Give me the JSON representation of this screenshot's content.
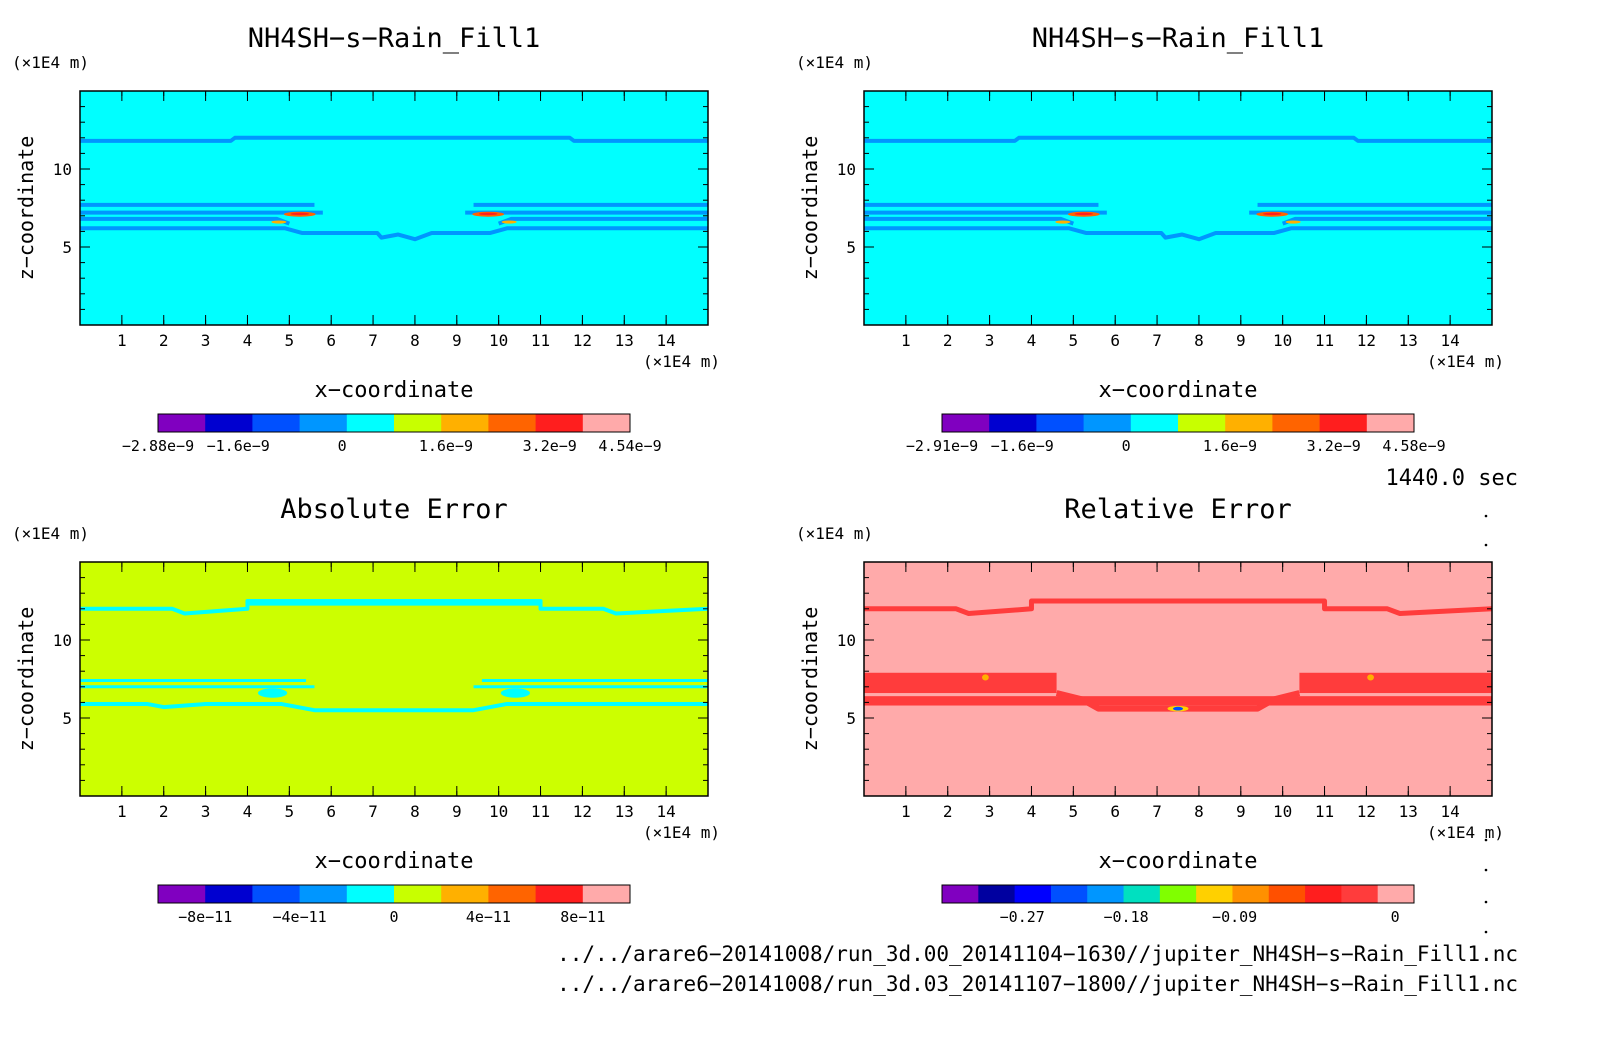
{
  "chart_data": [
    {
      "type": "heatmap",
      "title": "NH4SH−s−Rain_Fill1",
      "xlabel": "x−coordinate",
      "ylabel": "z−coordinate",
      "x_unit": "(×1E4 m)",
      "y_unit": "(×1E4 m)",
      "xlim": [
        0,
        15
      ],
      "ylim": [
        0,
        15
      ],
      "x_ticks": [
        1,
        2,
        3,
        4,
        5,
        6,
        7,
        8,
        9,
        10,
        11,
        12,
        13,
        14
      ],
      "y_ticks": [
        5,
        10
      ],
      "background_color": "#00ffff",
      "colorbar": {
        "colors": [
          "#8000c0",
          "#0000d0",
          "#0050ff",
          "#0096ff",
          "#00ffff",
          "#c8ff00",
          "#ffb000",
          "#ff6400",
          "#ff1e1e",
          "#ffaaaa"
        ],
        "labels": [
          "−2.88e−9",
          "−1.6e−9",
          "0",
          "1.6e−9",
          "3.2e−9",
          "4.54e−9"
        ],
        "label_positions": [
          0,
          0.17,
          0.39,
          0.61,
          0.83,
          1.0
        ]
      }
    },
    {
      "type": "heatmap",
      "title": "NH4SH−s−Rain_Fill1",
      "xlabel": "x−coordinate",
      "ylabel": "z−coordinate",
      "x_unit": "(×1E4 m)",
      "y_unit": "(×1E4 m)",
      "xlim": [
        0,
        15
      ],
      "ylim": [
        0,
        15
      ],
      "x_ticks": [
        1,
        2,
        3,
        4,
        5,
        6,
        7,
        8,
        9,
        10,
        11,
        12,
        13,
        14
      ],
      "y_ticks": [
        5,
        10
      ],
      "background_color": "#00ffff",
      "colorbar": {
        "colors": [
          "#8000c0",
          "#0000d0",
          "#0050ff",
          "#0096ff",
          "#00ffff",
          "#c8ff00",
          "#ffb000",
          "#ff6400",
          "#ff1e1e",
          "#ffaaaa"
        ],
        "labels": [
          "−2.91e−9",
          "−1.6e−9",
          "0",
          "1.6e−9",
          "3.2e−9",
          "4.58e−9"
        ],
        "label_positions": [
          0,
          0.17,
          0.39,
          0.61,
          0.83,
          1.0
        ]
      }
    },
    {
      "type": "heatmap",
      "title": "Absolute Error",
      "xlabel": "x−coordinate",
      "ylabel": "z−coordinate",
      "x_unit": "(×1E4 m)",
      "y_unit": "(×1E4 m)",
      "xlim": [
        0,
        15
      ],
      "ylim": [
        0,
        15
      ],
      "x_ticks": [
        1,
        2,
        3,
        4,
        5,
        6,
        7,
        8,
        9,
        10,
        11,
        12,
        13,
        14
      ],
      "y_ticks": [
        5,
        10
      ],
      "background_color": "#ccff00",
      "colorbar": {
        "colors": [
          "#8000c0",
          "#0000d0",
          "#0050ff",
          "#0096ff",
          "#00ffff",
          "#c8ff00",
          "#ffb000",
          "#ff6400",
          "#ff1e1e",
          "#ffaaaa"
        ],
        "labels": [
          "−8e−11",
          "−4e−11",
          "0",
          "4e−11",
          "8e−11"
        ],
        "label_positions": [
          0.1,
          0.3,
          0.5,
          0.7,
          0.9
        ]
      }
    },
    {
      "type": "heatmap",
      "title": "Relative Error",
      "xlabel": "x−coordinate",
      "ylabel": "z−coordinate",
      "x_unit": "(×1E4 m)",
      "y_unit": "(×1E4 m)",
      "xlim": [
        0,
        15
      ],
      "ylim": [
        0,
        15
      ],
      "x_ticks": [
        1,
        2,
        3,
        4,
        5,
        6,
        7,
        8,
        9,
        10,
        11,
        12,
        13,
        14
      ],
      "y_ticks": [
        5,
        10
      ],
      "background_color": "#ffaaaa",
      "colorbar": {
        "colors": [
          "#8000c0",
          "#0000a0",
          "#0000ff",
          "#0050ff",
          "#0096ff",
          "#00e0c0",
          "#80ff00",
          "#ffd000",
          "#ff9000",
          "#ff5000",
          "#ff1e1e",
          "#ff3c3c",
          "#ffaaaa"
        ],
        "labels": [
          "−0.27",
          "−0.18",
          "−0.09",
          "0"
        ],
        "label_positions": [
          0.17,
          0.39,
          0.62,
          0.96
        ]
      }
    }
  ],
  "time_label": "1440.0 sec",
  "files": [
    "../../arare6−20141008/run_3d.00_20141104−1630//jupiter_NH4SH−s−Rain_Fill1.nc",
    "../../arare6−20141008/run_3d.03_20141107−1800//jupiter_NH4SH−s−Rain_Fill1.nc"
  ]
}
